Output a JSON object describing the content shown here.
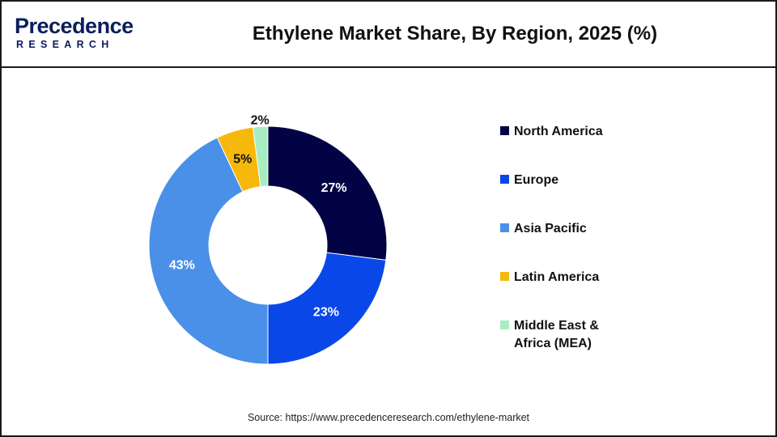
{
  "header": {
    "logo_text": "Precedence",
    "logo_subtext": "RESEARCH",
    "title": "Ethylene Market Share, By Region, 2025 (%)"
  },
  "chart_data": {
    "type": "pie",
    "variant": "donut",
    "title": "Ethylene Market Share, By Region, 2025 (%)",
    "categories": [
      "North America",
      "Europe",
      "Asia Pacific",
      "Latin America",
      "Middle East & Africa (MEA)"
    ],
    "values": [
      27,
      23,
      43,
      5,
      2
    ],
    "labels": [
      "27%",
      "23%",
      "43%",
      "5%",
      "2%"
    ],
    "colors": [
      "#020344",
      "#0a47e8",
      "#4a90e8",
      "#f7b80c",
      "#a8ecc2"
    ],
    "label_colors": [
      "#ffffff",
      "#ffffff",
      "#ffffff",
      "#111111",
      "#111111"
    ],
    "legend_position": "right",
    "unit": "%"
  },
  "legend": {
    "items": [
      {
        "label": "North America",
        "color": "#020344"
      },
      {
        "label": "Europe",
        "color": "#0a47e8"
      },
      {
        "label": "Asia Pacific",
        "color": "#4a90e8"
      },
      {
        "label": "Latin America",
        "color": "#f7b80c"
      },
      {
        "label": "Middle East &\nAfrica (MEA)",
        "color": "#a8ecc2"
      }
    ]
  },
  "footer": {
    "source": "Source: https://www.precedenceresearch.com/ethylene-market"
  }
}
